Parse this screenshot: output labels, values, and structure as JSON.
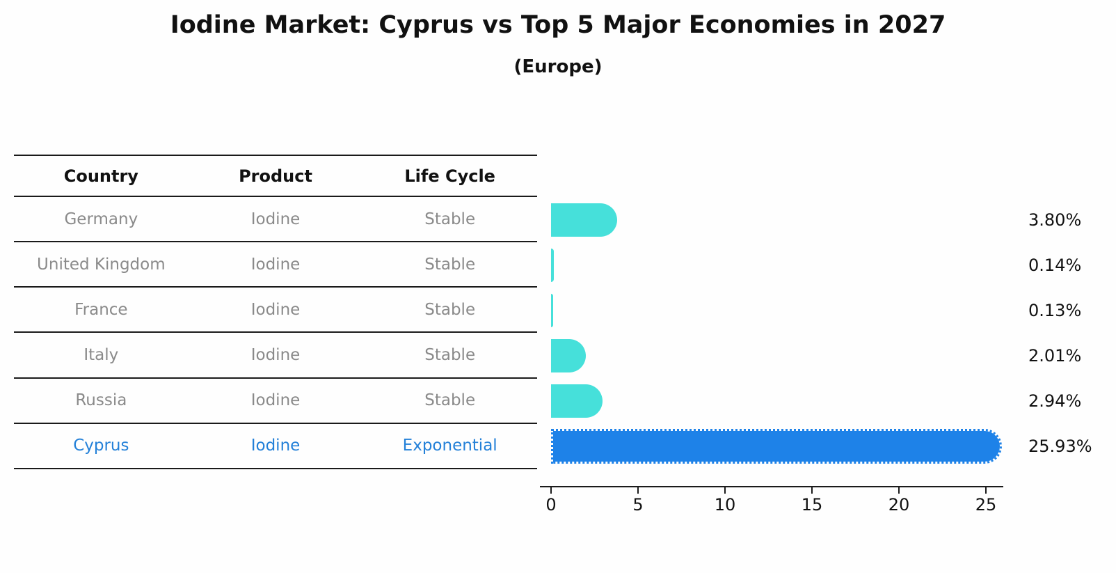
{
  "title": "Iodine Market: Cyprus vs Top 5 Major Economies in 2027",
  "subtitle": "(Europe)",
  "table": {
    "headers": [
      "Country",
      "Product",
      "Life Cycle"
    ],
    "rows": [
      {
        "country": "Germany",
        "product": "Iodine",
        "life_cycle": "Stable",
        "highlight": false
      },
      {
        "country": "United Kingdom",
        "product": "Iodine",
        "life_cycle": "Stable",
        "highlight": false
      },
      {
        "country": "France",
        "product": "Iodine",
        "life_cycle": "Stable",
        "highlight": false
      },
      {
        "country": "Italy",
        "product": "Iodine",
        "life_cycle": "Stable",
        "highlight": false
      },
      {
        "country": "Russia",
        "product": "Iodine",
        "life_cycle": "Stable",
        "highlight": false
      },
      {
        "country": "Cyprus",
        "product": "Iodine",
        "life_cycle": "Exponential",
        "highlight": true
      }
    ]
  },
  "chart_data": {
    "type": "bar",
    "orientation": "horizontal",
    "title": "Iodine Market: Cyprus vs Top 5 Major Economies in 2027 (Europe)",
    "categories": [
      "Germany",
      "United Kingdom",
      "France",
      "Italy",
      "Russia",
      "Cyprus"
    ],
    "values": [
      3.8,
      0.14,
      0.13,
      2.01,
      2.94,
      25.93
    ],
    "value_labels": [
      "3.80%",
      "0.14%",
      "0.13%",
      "2.01%",
      "2.94%",
      "25.93%"
    ],
    "unit": "percent",
    "x_ticks": [
      0,
      5,
      10,
      15,
      20,
      25
    ],
    "xlim": [
      0,
      26
    ],
    "xlabel": "",
    "ylabel": "",
    "grid": false,
    "legend": "none",
    "highlight_category": "Cyprus",
    "bar_style": {
      "default_color": "#46e0da",
      "highlight_color": "#1e82e8",
      "highlight_edge": "dotted",
      "cap": "rounded-right"
    }
  },
  "colors": {
    "bar_default": "#46e0da",
    "bar_highlight": "#1e82e8",
    "highlight_text": "#2380d8",
    "row_text": "#8a8a8a",
    "header_text": "#111111",
    "axis": "#1a1a1a"
  }
}
